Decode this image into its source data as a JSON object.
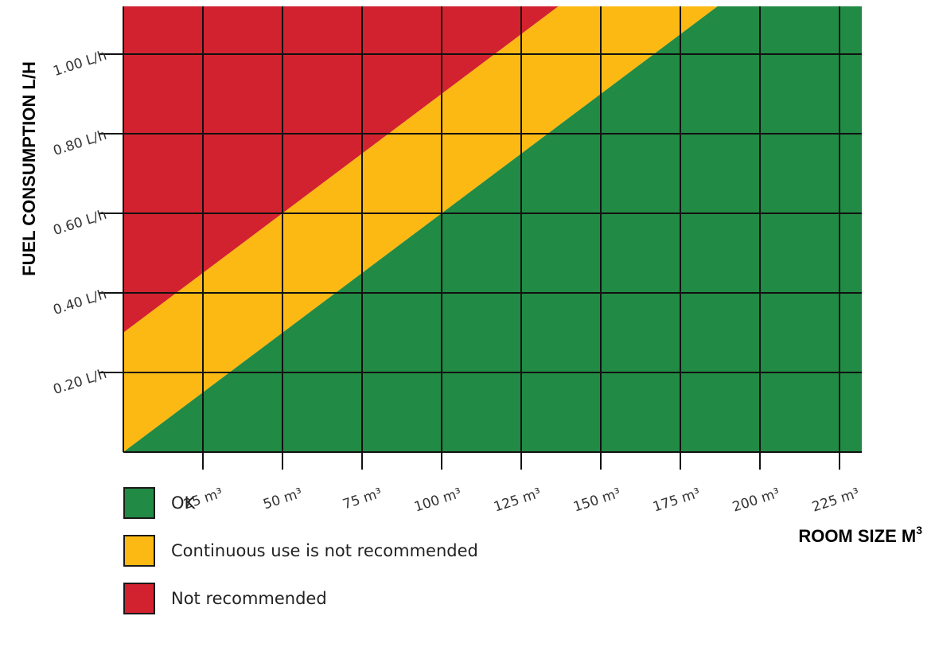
{
  "chart_data": {
    "type": "area",
    "xlabel": "ROOM SIZE M",
    "xlabel_sup": "3",
    "ylabel": "FUEL CONSUMPTION L/H",
    "xlim": [
      0,
      232
    ],
    "ylim": [
      0,
      1.12
    ],
    "x_ticks": [
      25,
      50,
      75,
      100,
      125,
      150,
      175,
      200,
      225
    ],
    "x_tick_labels": [
      "25 m³",
      "50 m³",
      "75 m³",
      "100 m³",
      "125 m³",
      "150 m³",
      "175 m³",
      "200 m³",
      "225 m³"
    ],
    "y_ticks": [
      0.2,
      0.4,
      0.6,
      0.8,
      1.0
    ],
    "y_tick_labels": [
      "0.20 L/h",
      "0.40 L/h",
      "0.60 L/h",
      "0.80 L/h",
      "1.00 L/h"
    ],
    "grid": true,
    "boundaries": [
      {
        "between": "OK / Continuous use is not recommended",
        "intercept": 0.0,
        "slope_per_m3": 0.006
      },
      {
        "between": "Continuous use is not recommended / Not recommended",
        "intercept": 0.3,
        "slope_per_m3": 0.006
      }
    ],
    "zones": [
      {
        "name": "OK",
        "color": "#218a44"
      },
      {
        "name": "Continuous use is not recommended",
        "color": "#fcb913"
      },
      {
        "name": "Not recommended",
        "color": "#d2222f"
      }
    ],
    "legend_position": "bottom-left"
  }
}
